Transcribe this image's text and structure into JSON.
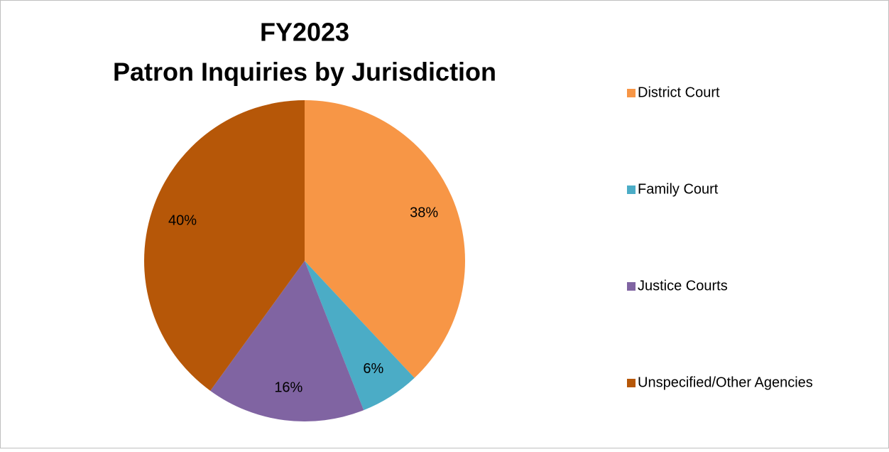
{
  "chart_data": {
    "type": "pie",
    "title": [
      "FY2023",
      "Patron Inquiries by Jurisdiction"
    ],
    "categories": [
      "District Court",
      "Family Court",
      "Justice Courts",
      "Unspecified/Other Agencies"
    ],
    "values": [
      38,
      6,
      16,
      40
    ],
    "value_labels": [
      "38%",
      "6%",
      "16%",
      "40%"
    ],
    "colors": [
      "#f79646",
      "#4bacc6",
      "#8064a2",
      "#b65708"
    ],
    "legend": "right"
  }
}
